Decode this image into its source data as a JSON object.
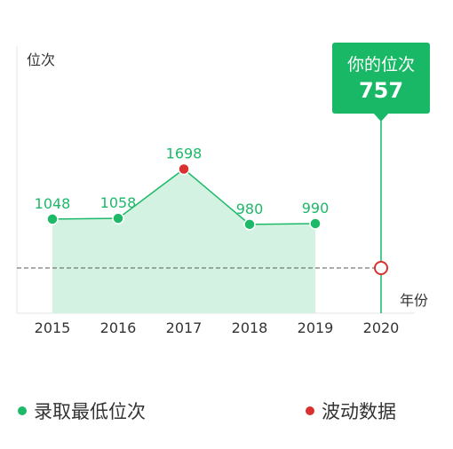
{
  "chart_data": {
    "type": "line",
    "ylabel": "位次",
    "xlabel": "年份",
    "categories": [
      "2015",
      "2016",
      "2017",
      "2018",
      "2019",
      "2020"
    ],
    "series": [
      {
        "name": "录取最低位次",
        "x": [
          "2015",
          "2016",
          "2017",
          "2018",
          "2019"
        ],
        "values": [
          1048,
          1058,
          1698,
          980,
          990
        ],
        "labels": [
          "1048",
          "1058",
          "1698",
          "980",
          "990"
        ],
        "point_types": [
          "normal",
          "normal",
          "fluctuation",
          "normal",
          "normal"
        ],
        "area_fill": true
      }
    ],
    "your_rank": {
      "x": "2020",
      "value": 757,
      "label": "你的位次",
      "value_text": "757"
    },
    "legend": [
      {
        "name": "录取最低位次",
        "color": "#1db968"
      },
      {
        "name": "波动数据",
        "color": "#d8312f"
      }
    ],
    "colors": {
      "line": "#1db968",
      "area": "#d3f2e2",
      "point": "#1db968",
      "fluctuation": "#d8312f",
      "callout": "#19b866",
      "reference_line": "#777777",
      "axis": "#e6e6e6",
      "text": "#333333"
    }
  }
}
